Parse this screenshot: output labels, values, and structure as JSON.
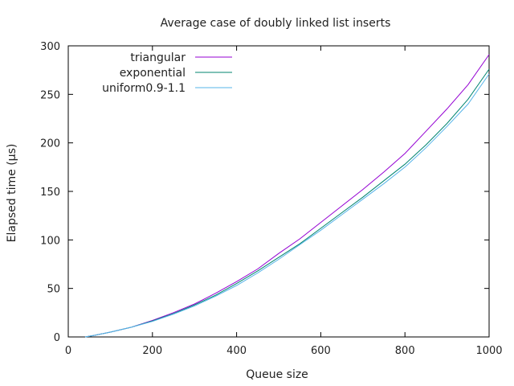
{
  "chart_data": {
    "type": "line",
    "title": "Average case of doubly linked list inserts",
    "xlabel": "Queue size",
    "ylabel": "Elapsed time (µs)",
    "xlim": [
      0,
      1000
    ],
    "ylim": [
      0,
      300
    ],
    "xticks": [
      0,
      200,
      400,
      600,
      800,
      1000
    ],
    "yticks": [
      0,
      50,
      100,
      150,
      200,
      250,
      300
    ],
    "grid": false,
    "legend_position": "top-left",
    "x": [
      40,
      60,
      100,
      150,
      200,
      250,
      300,
      350,
      400,
      450,
      500,
      550,
      600,
      650,
      700,
      750,
      800,
      850,
      900,
      950,
      1000
    ],
    "series": [
      {
        "name": "triangular",
        "color": "#9400d3",
        "values": [
          0,
          1.5,
          5,
          10,
          17,
          25,
          34,
          45,
          57,
          70,
          86,
          101,
          118,
          135,
          152,
          170,
          189,
          212,
          235,
          260,
          291
        ]
      },
      {
        "name": "exponential",
        "color": "#00856f",
        "values": [
          0,
          1.5,
          5,
          10,
          16.5,
          24,
          33,
          43,
          55,
          68,
          82,
          96,
          112,
          128,
          144,
          161,
          178,
          198,
          220,
          245,
          276
        ]
      },
      {
        "name": "uniform0.9-1.1",
        "color": "#56b4e9",
        "values": [
          0,
          1.5,
          5,
          10,
          16,
          23.5,
          32,
          42,
          53,
          66,
          80,
          95,
          110,
          126,
          142,
          158,
          175,
          195,
          217,
          240,
          271
        ]
      }
    ]
  }
}
